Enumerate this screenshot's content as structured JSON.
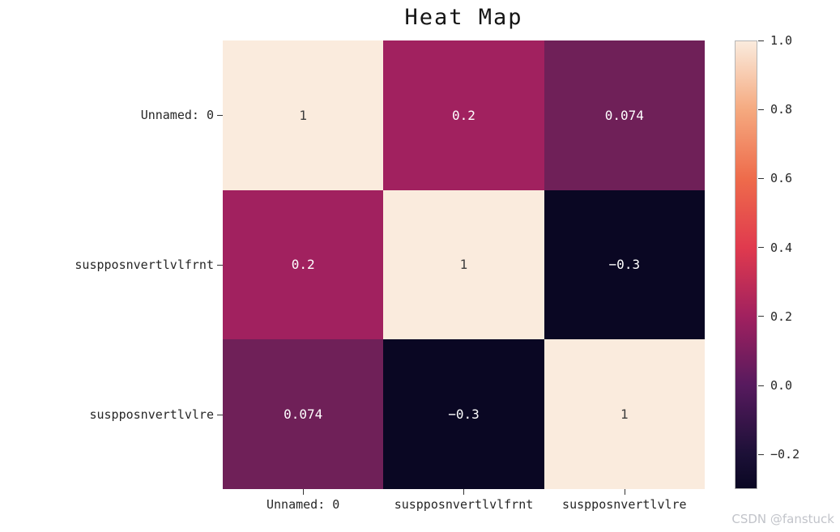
{
  "title": "Heat Map",
  "watermark": "CSDN @fanstuck",
  "colors": {
    "background": "#ffffff",
    "title_text": "#151515",
    "axis_text": "#262626",
    "tick_mark": "#333333",
    "watermark_text": "#c2c4ca",
    "cell_light": "#faebdd",
    "cell_magenta": "#a1215f",
    "cell_purple": "#6f2058",
    "cell_dark_navy": "#0a0723"
  },
  "chart_data": {
    "type": "heatmap",
    "title": "Heat Map",
    "colormap": "rocket",
    "legend_position": "right",
    "vmin": -0.3,
    "vmax": 1.0,
    "x_categories": [
      "Unnamed: 0",
      "suspposnvertlvlfrnt",
      "suspposnvertlvlre"
    ],
    "y_categories": [
      "Unnamed: 0",
      "suspposnvertlvlfrnt",
      "suspposnvertlvlre"
    ],
    "matrix": [
      [
        1,
        0.2,
        0.074
      ],
      [
        0.2,
        1,
        -0.3
      ],
      [
        0.074,
        -0.3,
        1
      ]
    ],
    "cells": [
      {
        "row": "Unnamed: 0",
        "col": "Unnamed: 0",
        "value": 1,
        "label": "1",
        "bg": "#faebdd",
        "fg": "#3d3d3d"
      },
      {
        "row": "Unnamed: 0",
        "col": "suspposnvertlvlfrnt",
        "value": 0.2,
        "label": "0.2",
        "bg": "#a1215f",
        "fg": "#ffffff"
      },
      {
        "row": "Unnamed: 0",
        "col": "suspposnvertlvlre",
        "value": 0.074,
        "label": "0.074",
        "bg": "#6f2058",
        "fg": "#ffffff"
      },
      {
        "row": "suspposnvertlvlfrnt",
        "col": "Unnamed: 0",
        "value": 0.2,
        "label": "0.2",
        "bg": "#a1215f",
        "fg": "#ffffff"
      },
      {
        "row": "suspposnvertlvlfrnt",
        "col": "suspposnvertlvlfrnt",
        "value": 1,
        "label": "1",
        "bg": "#faebdd",
        "fg": "#3d3d3d"
      },
      {
        "row": "suspposnvertlvlfrnt",
        "col": "suspposnvertlvlre",
        "value": -0.3,
        "label": "−0.3",
        "bg": "#0a0723",
        "fg": "#ffffff"
      },
      {
        "row": "suspposnvertlvlre",
        "col": "Unnamed: 0",
        "value": 0.074,
        "label": "0.074",
        "bg": "#6f2058",
        "fg": "#ffffff"
      },
      {
        "row": "suspposnvertlvlre",
        "col": "suspposnvertlvlfrnt",
        "value": -0.3,
        "label": "−0.3",
        "bg": "#0a0723",
        "fg": "#ffffff"
      },
      {
        "row": "suspposnvertlvlre",
        "col": "suspposnvertlvlre",
        "value": 1,
        "label": "1",
        "bg": "#faebdd",
        "fg": "#3d3d3d"
      }
    ],
    "colorbar_ticks": [
      {
        "label": "1.0",
        "value": 1.0
      },
      {
        "label": "0.8",
        "value": 0.8
      },
      {
        "label": "0.6",
        "value": 0.6
      },
      {
        "label": "0.4",
        "value": 0.4
      },
      {
        "label": "0.2",
        "value": 0.2
      },
      {
        "label": "0.0",
        "value": 0.0
      },
      {
        "label": "−0.2",
        "value": -0.2
      }
    ],
    "colorbar_gradient_stops": [
      {
        "color": "#faebdd",
        "pos": 0
      },
      {
        "color": "#f5a97f",
        "pos": 15.4
      },
      {
        "color": "#ee6b4b",
        "pos": 30.8
      },
      {
        "color": "#e03a4e",
        "pos": 46.2
      },
      {
        "color": "#a1215f",
        "pos": 61.5
      },
      {
        "color": "#571a5e",
        "pos": 76.9
      },
      {
        "color": "#1c1037",
        "pos": 92.3
      },
      {
        "color": "#0a0723",
        "pos": 100
      }
    ]
  }
}
